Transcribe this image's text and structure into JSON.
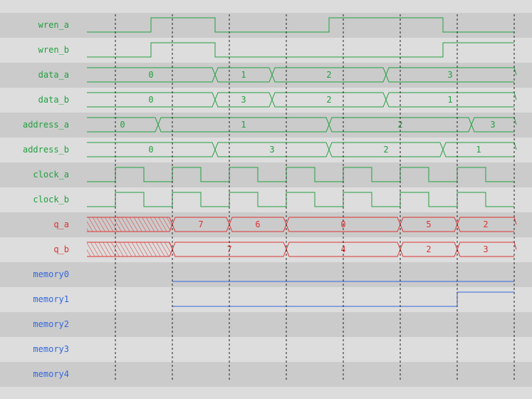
{
  "colors": {
    "logic": "#22a040",
    "output": "#dd3333",
    "memory": "#3366dd",
    "grid": "#222222",
    "row_dark": "#cbcbcb",
    "row_light": "#dddddd"
  },
  "time_end": 150,
  "gridlines": [
    10,
    30,
    50,
    70,
    90,
    110,
    130,
    150
  ],
  "signals": [
    {
      "name": "wren_a",
      "kind": "bit",
      "color": "logic",
      "edges": [
        [
          0,
          0
        ],
        [
          22.5,
          1
        ],
        [
          45,
          0
        ],
        [
          85,
          1
        ],
        [
          125,
          0
        ]
      ]
    },
    {
      "name": "wren_b",
      "kind": "bit",
      "color": "logic",
      "edges": [
        [
          0,
          0
        ],
        [
          22.5,
          1
        ],
        [
          45,
          0
        ],
        [
          125,
          1
        ]
      ]
    },
    {
      "name": "data_a",
      "kind": "bus",
      "color": "logic",
      "segments": [
        [
          0,
          "0"
        ],
        [
          45,
          "1"
        ],
        [
          65,
          "2"
        ],
        [
          105,
          "3"
        ]
      ]
    },
    {
      "name": "data_b",
      "kind": "bus",
      "color": "logic",
      "segments": [
        [
          0,
          "0"
        ],
        [
          45,
          "3"
        ],
        [
          65,
          "2"
        ],
        [
          105,
          "1"
        ]
      ]
    },
    {
      "name": "address_a",
      "kind": "bus",
      "color": "logic",
      "segments": [
        [
          0,
          "0"
        ],
        [
          25,
          "1"
        ],
        [
          85,
          "2"
        ],
        [
          135,
          "3"
        ]
      ]
    },
    {
      "name": "address_b",
      "kind": "bus",
      "color": "logic",
      "segments": [
        [
          0,
          "0"
        ],
        [
          45,
          "3"
        ],
        [
          85,
          "2"
        ],
        [
          125,
          "1"
        ]
      ]
    },
    {
      "name": "clock_a",
      "kind": "clock",
      "color": "logic",
      "first_rise": 10,
      "period": 20
    },
    {
      "name": "clock_b",
      "kind": "clock",
      "color": "logic",
      "first_rise": 10,
      "period": 20
    },
    {
      "name": "q_a",
      "kind": "bus",
      "color": "output",
      "segments": [
        [
          0,
          "X"
        ],
        [
          30,
          "7"
        ],
        [
          50,
          "6"
        ],
        [
          70,
          "0"
        ],
        [
          110,
          "5"
        ],
        [
          130,
          "2"
        ]
      ]
    },
    {
      "name": "q_b",
      "kind": "bus",
      "color": "output",
      "segments": [
        [
          0,
          "X"
        ],
        [
          30,
          "7"
        ],
        [
          70,
          "4"
        ],
        [
          110,
          "2"
        ],
        [
          130,
          "3"
        ]
      ]
    },
    {
      "name": "memory0",
      "kind": "bit",
      "color": "memory",
      "edges": [
        [
          30,
          0
        ]
      ]
    },
    {
      "name": "memory1",
      "kind": "bit",
      "color": "memory",
      "edges": [
        [
          30,
          0
        ],
        [
          130,
          1
        ]
      ]
    },
    {
      "name": "memory2",
      "kind": "bit",
      "color": "memory",
      "edges": []
    },
    {
      "name": "memory3",
      "kind": "bit",
      "color": "memory",
      "edges": []
    },
    {
      "name": "memory4",
      "kind": "bit",
      "color": "memory",
      "edges": []
    }
  ]
}
